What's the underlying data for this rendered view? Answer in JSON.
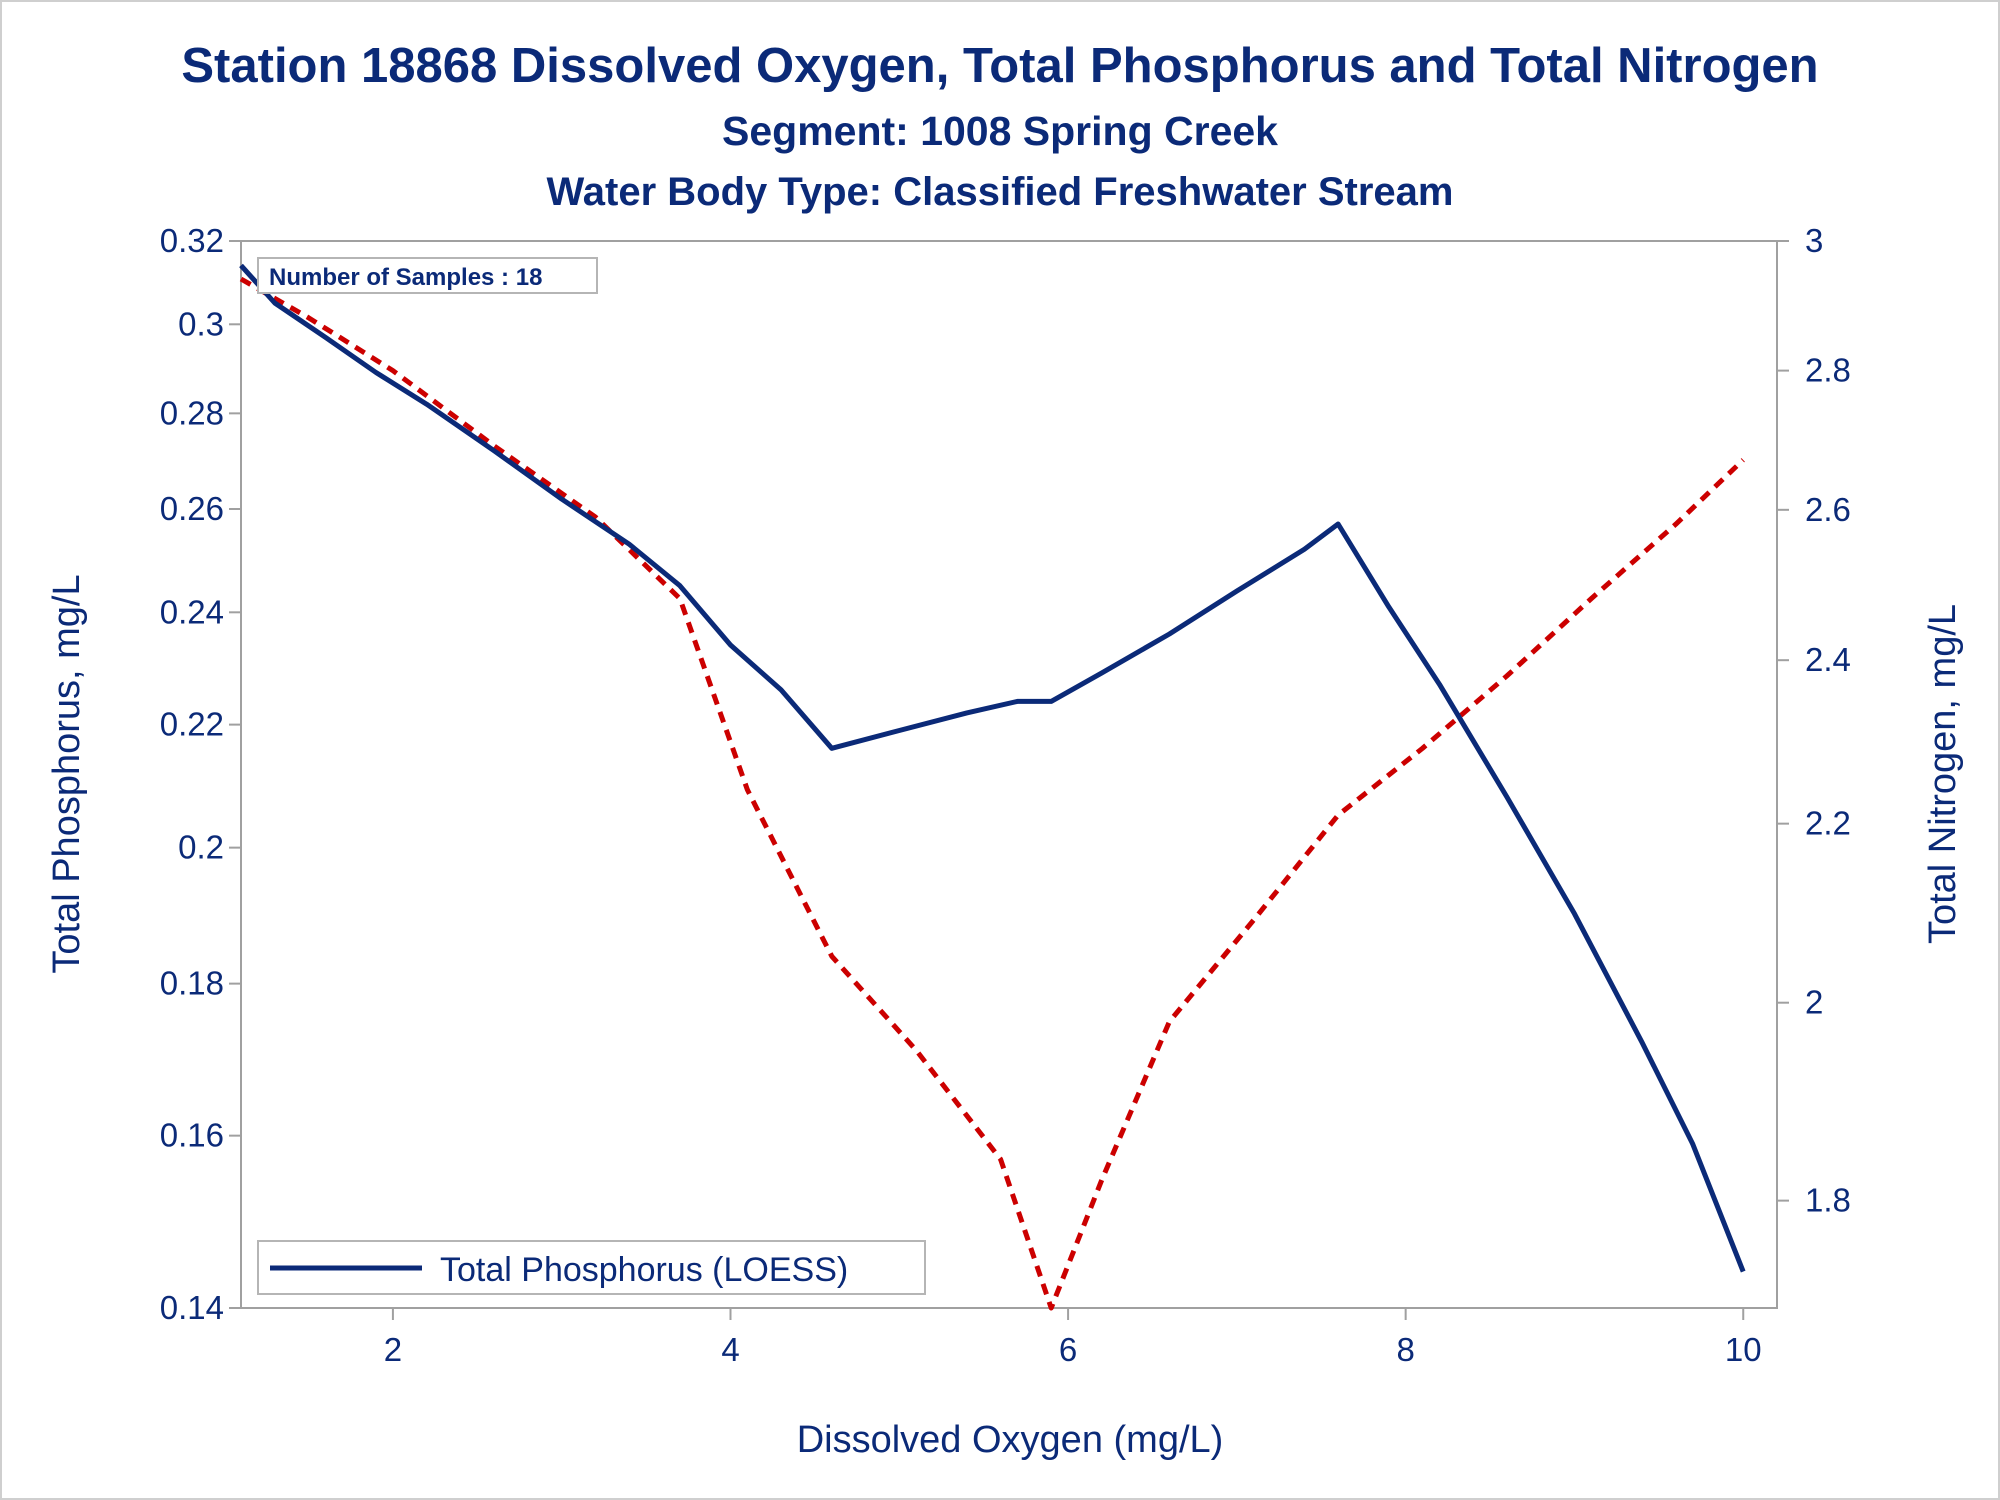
{
  "chart_data": {
    "type": "line",
    "title": "Station 18868  Dissolved Oxygen, Total Phosphorus and Total Nitrogen",
    "subtitle1": "Segment: 1008  Spring Creek",
    "subtitle2": "Water Body Type: Classified Freshwater Stream",
    "xlabel": "Dissolved Oxygen (mg/L)",
    "ylabel_left": "Total Phosphorus, mg/L",
    "ylabel_right": "Total Nitrogen, mg/L",
    "xlim": [
      1.1,
      10.2
    ],
    "ylim_left": [
      0.14,
      0.32
    ],
    "ylim_right": [
      1.7,
      3.0
    ],
    "y_left_scale": "log",
    "y_right_scale": "log",
    "x_ticks": [
      "2",
      "4",
      "6",
      "8",
      "10"
    ],
    "y_left_ticks": [
      "0.14",
      "0.16",
      "0.18",
      "0.2",
      "0.22",
      "0.24",
      "0.26",
      "0.28",
      "0.3",
      "0.32"
    ],
    "y_right_ticks": [
      "1.8",
      "2",
      "2.2",
      "2.4",
      "2.6",
      "2.8",
      "3"
    ],
    "annotation": "Number of Samples : 18",
    "legend_position": "bottom-left",
    "grid": false,
    "colors": {
      "phosphorus": "#0b2a78",
      "nitrogen": "#cc0000",
      "text": "#0b2a78",
      "frame": "#a0a0a0"
    },
    "series": [
      {
        "name": "Total Phosphorus (LOESS)",
        "axis": "left",
        "style": "solid",
        "x": [
          1.1,
          1.3,
          1.6,
          1.9,
          2.2,
          2.6,
          3.0,
          3.4,
          3.7,
          4.0,
          4.3,
          4.6,
          5.0,
          5.4,
          5.7,
          5.9,
          6.2,
          6.6,
          7.0,
          7.4,
          7.6,
          7.9,
          8.2,
          8.6,
          9.0,
          9.4,
          9.7,
          10.0
        ],
        "values": [
          0.314,
          0.305,
          0.297,
          0.289,
          0.282,
          0.272,
          0.262,
          0.253,
          0.245,
          0.234,
          0.226,
          0.216,
          0.219,
          0.222,
          0.224,
          0.224,
          0.229,
          0.236,
          0.244,
          0.252,
          0.257,
          0.241,
          0.227,
          0.208,
          0.19,
          0.172,
          0.159,
          0.144
        ]
      },
      {
        "axis": "right",
        "style": "dashed",
        "x": [
          1.1,
          1.5,
          2.0,
          2.6,
          3.2,
          3.7,
          4.1,
          4.6,
          5.1,
          5.6,
          5.9,
          6.2,
          6.6,
          7.1,
          7.6,
          8.1,
          8.6,
          9.1,
          9.6,
          10.0
        ],
        "values": [
          2.94,
          2.88,
          2.8,
          2.69,
          2.59,
          2.48,
          2.24,
          2.05,
          1.95,
          1.84,
          1.7,
          1.82,
          1.98,
          2.09,
          2.21,
          2.29,
          2.38,
          2.48,
          2.58,
          2.67
        ]
      }
    ]
  }
}
